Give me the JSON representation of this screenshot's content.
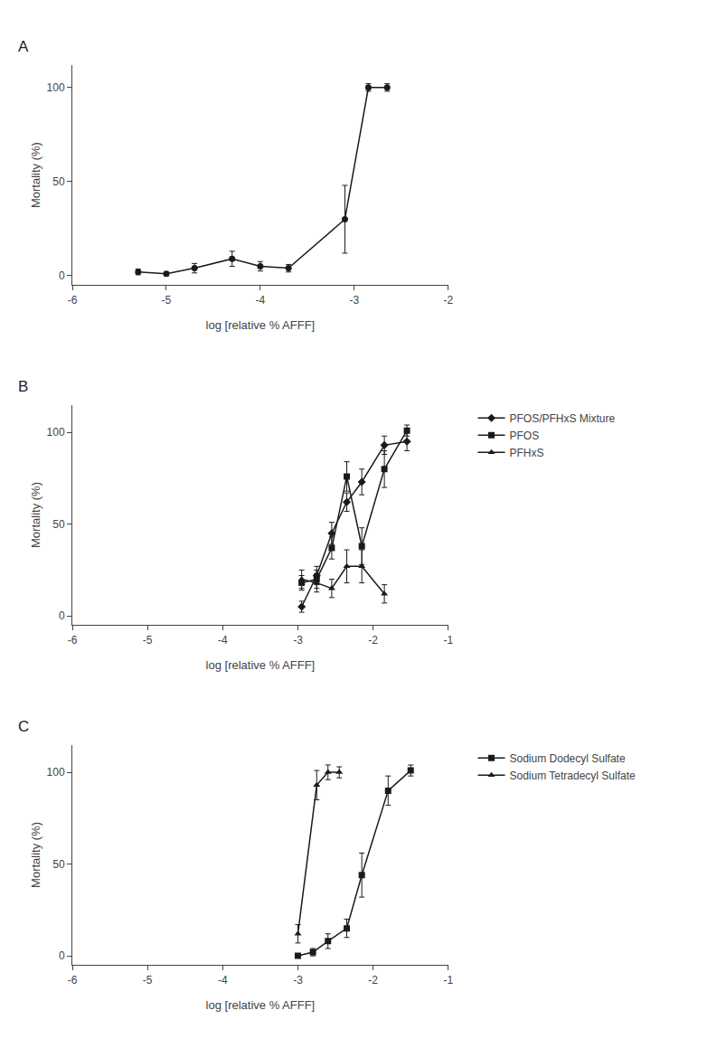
{
  "chart_data": [
    {
      "type": "line",
      "title": "A",
      "xlabel": "log [relative % AFFF]",
      "ylabel": "Mortality (%)",
      "xlim": [
        -6,
        -2
      ],
      "xticks": [
        -6,
        -5,
        -4,
        -3,
        -2
      ],
      "ylim": [
        -5,
        112
      ],
      "yticks": [
        0,
        50,
        100
      ],
      "grid": false,
      "series": [
        {
          "color": "#1a1a1a",
          "marker": "circle",
          "line_style": "solid",
          "x": [
            -5.3,
            -5.0,
            -4.7,
            -4.3,
            -4.0,
            -3.7,
            -3.1,
            -2.85,
            -2.65
          ],
          "values": [
            2,
            1,
            4,
            9,
            5,
            4,
            30,
            100,
            100
          ],
          "yerr": [
            1.5,
            1.0,
            2.5,
            4.0,
            2.5,
            2.0,
            18,
            2,
            2
          ]
        }
      ]
    },
    {
      "type": "line",
      "title": "B",
      "xlabel": "log [relative % AFFF]",
      "ylabel": "Mortality (%)",
      "xlim": [
        -6,
        -1
      ],
      "xticks": [
        -6,
        -5,
        -4,
        -3,
        -2,
        -1
      ],
      "ylim": [
        -5,
        115
      ],
      "yticks": [
        0,
        50,
        100
      ],
      "grid": false,
      "legend": "right",
      "series": [
        {
          "name": "PFOS/PFHxS Mixture",
          "color": "#1a1a1a",
          "marker": "diamond",
          "line_style": "solid",
          "x": [
            -2.95,
            -2.75,
            -2.55,
            -2.35,
            -2.15,
            -1.85,
            -1.55
          ],
          "values": [
            5,
            22,
            45,
            62,
            73,
            93,
            95
          ],
          "yerr": [
            3,
            5,
            6,
            5,
            7,
            5,
            5
          ]
        },
        {
          "name": "PFOS",
          "color": "#1a1a1a",
          "marker": "square",
          "line_style": "solid",
          "x": [
            -2.95,
            -2.75,
            -2.55,
            -2.35,
            -2.15,
            -1.85,
            -1.55
          ],
          "values": [
            18,
            20,
            37,
            76,
            38,
            80,
            101
          ],
          "yerr": [
            4,
            5,
            6,
            8,
            10,
            10,
            3
          ]
        },
        {
          "name": "PFHxS",
          "color": "#1a1a1a",
          "marker": "triangle-up",
          "line_style": "solid",
          "x": [
            -2.95,
            -2.75,
            -2.55,
            -2.35,
            -2.15,
            -1.85
          ],
          "values": [
            20,
            18,
            15,
            27,
            27,
            12
          ],
          "yerr": [
            5,
            5,
            5,
            9,
            9,
            5
          ]
        }
      ]
    },
    {
      "type": "line",
      "title": "C",
      "xlabel": "log [relative % AFFF]",
      "ylabel": "Mortality (%)",
      "xlim": [
        -6,
        -1
      ],
      "xticks": [
        -6,
        -5,
        -4,
        -3,
        -2,
        -1
      ],
      "ylim": [
        -5,
        115
      ],
      "yticks": [
        0,
        50,
        100
      ],
      "grid": false,
      "legend": "right",
      "series": [
        {
          "name": "Sodium Dodecyl Sulfate",
          "color": "#1a1a1a",
          "marker": "square",
          "line_style": "solid",
          "x": [
            -3.0,
            -2.8,
            -2.6,
            -2.35,
            -2.15,
            -1.8,
            -1.5
          ],
          "values": [
            0,
            2,
            8,
            15,
            44,
            90,
            101
          ],
          "yerr": [
            1,
            2,
            4,
            5,
            12,
            8,
            3
          ]
        },
        {
          "name": "Sodium Tetradecyl Sulfate",
          "color": "#1a1a1a",
          "marker": "triangle-up",
          "line_style": "solid",
          "x": [
            -3.0,
            -2.75,
            -2.6,
            -2.45
          ],
          "values": [
            12,
            93,
            100,
            100
          ],
          "yerr": [
            5,
            8,
            4,
            3
          ]
        }
      ]
    }
  ]
}
